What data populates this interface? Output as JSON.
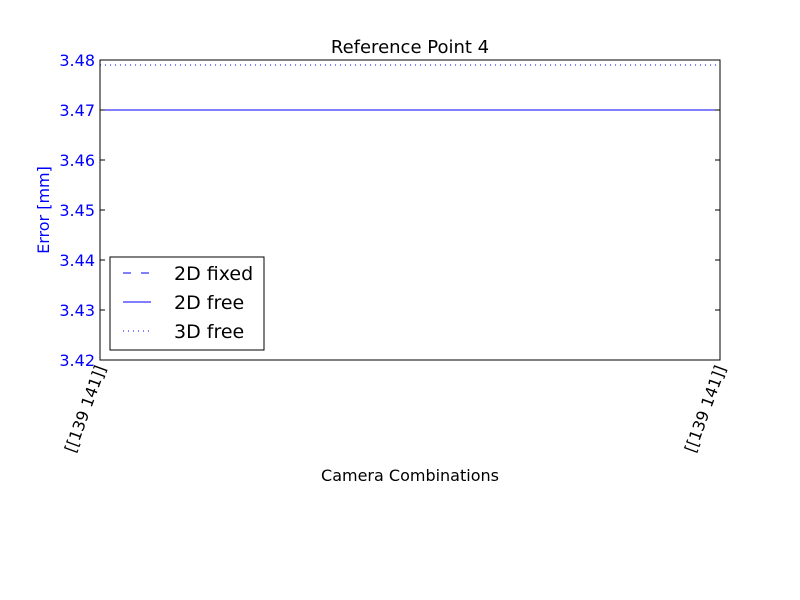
{
  "chart_data": {
    "type": "line",
    "title": "Reference Point 4",
    "xlabel": "Camera Combinations",
    "ylabel": "Error [mm]",
    "categories": [
      "[[139 141]]",
      "[[139 141]]"
    ],
    "ylim": [
      3.42,
      3.48
    ],
    "yticks": [
      "3.42",
      "3.43",
      "3.44",
      "3.45",
      "3.46",
      "3.47",
      "3.48"
    ],
    "grid": false,
    "legend_position": "lower-left",
    "series": [
      {
        "name": "2D fixed",
        "values": [
          3.42,
          3.42
        ],
        "style": "dashed",
        "color": "#0000ff"
      },
      {
        "name": "2D free",
        "values": [
          3.47,
          3.47
        ],
        "style": "solid",
        "color": "#0000ff"
      },
      {
        "name": "3D free",
        "values": [
          3.479,
          3.479
        ],
        "style": "dotted",
        "color": "#0000ff"
      }
    ],
    "colors": {
      "axis_label": "#0000ff",
      "tick_label_y": "#0000ff",
      "frame": "#000000"
    }
  }
}
